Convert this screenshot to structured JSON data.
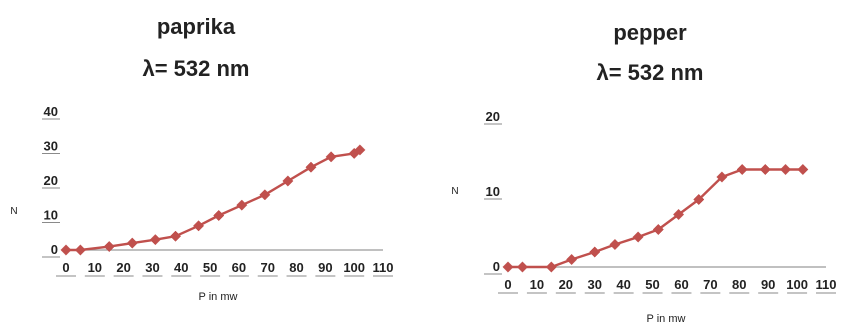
{
  "chart_data": [
    {
      "type": "line",
      "title": "paprika",
      "subtitle": "λ= 532 nm",
      "xlabel": "P in mw",
      "ylabel": "N",
      "xlim": [
        0,
        110
      ],
      "ylim": [
        0,
        40
      ],
      "xticks": [
        0,
        10,
        20,
        30,
        40,
        50,
        60,
        70,
        80,
        90,
        100,
        110
      ],
      "yticks": [
        0,
        10,
        20,
        30,
        40
      ],
      "grid": false,
      "series": [
        {
          "color": "#c0504d",
          "marker": "diamond",
          "x": [
            0,
            5,
            15,
            23,
            31,
            38,
            46,
            53,
            61,
            69,
            77,
            85,
            92,
            100,
            102
          ],
          "y": [
            0,
            0,
            1,
            2,
            3,
            4,
            7,
            10,
            13,
            16,
            20,
            24,
            27,
            28,
            29
          ]
        }
      ]
    },
    {
      "type": "line",
      "title": "pepper",
      "subtitle": "λ= 532 nm",
      "xlabel": "P in mw",
      "ylabel": "N",
      "xlim": [
        0,
        110
      ],
      "ylim": [
        0,
        20
      ],
      "xticks": [
        0,
        10,
        20,
        30,
        40,
        50,
        60,
        70,
        80,
        90,
        100,
        110
      ],
      "yticks": [
        0,
        10,
        20
      ],
      "grid": false,
      "series": [
        {
          "color": "#c0504d",
          "marker": "diamond",
          "x": [
            0,
            5,
            15,
            22,
            30,
            37,
            45,
            52,
            59,
            66,
            74,
            81,
            89,
            96,
            102
          ],
          "y": [
            0,
            0,
            0,
            1,
            2,
            3,
            4,
            5,
            7,
            9,
            12,
            13,
            13,
            13,
            13
          ]
        }
      ]
    }
  ]
}
